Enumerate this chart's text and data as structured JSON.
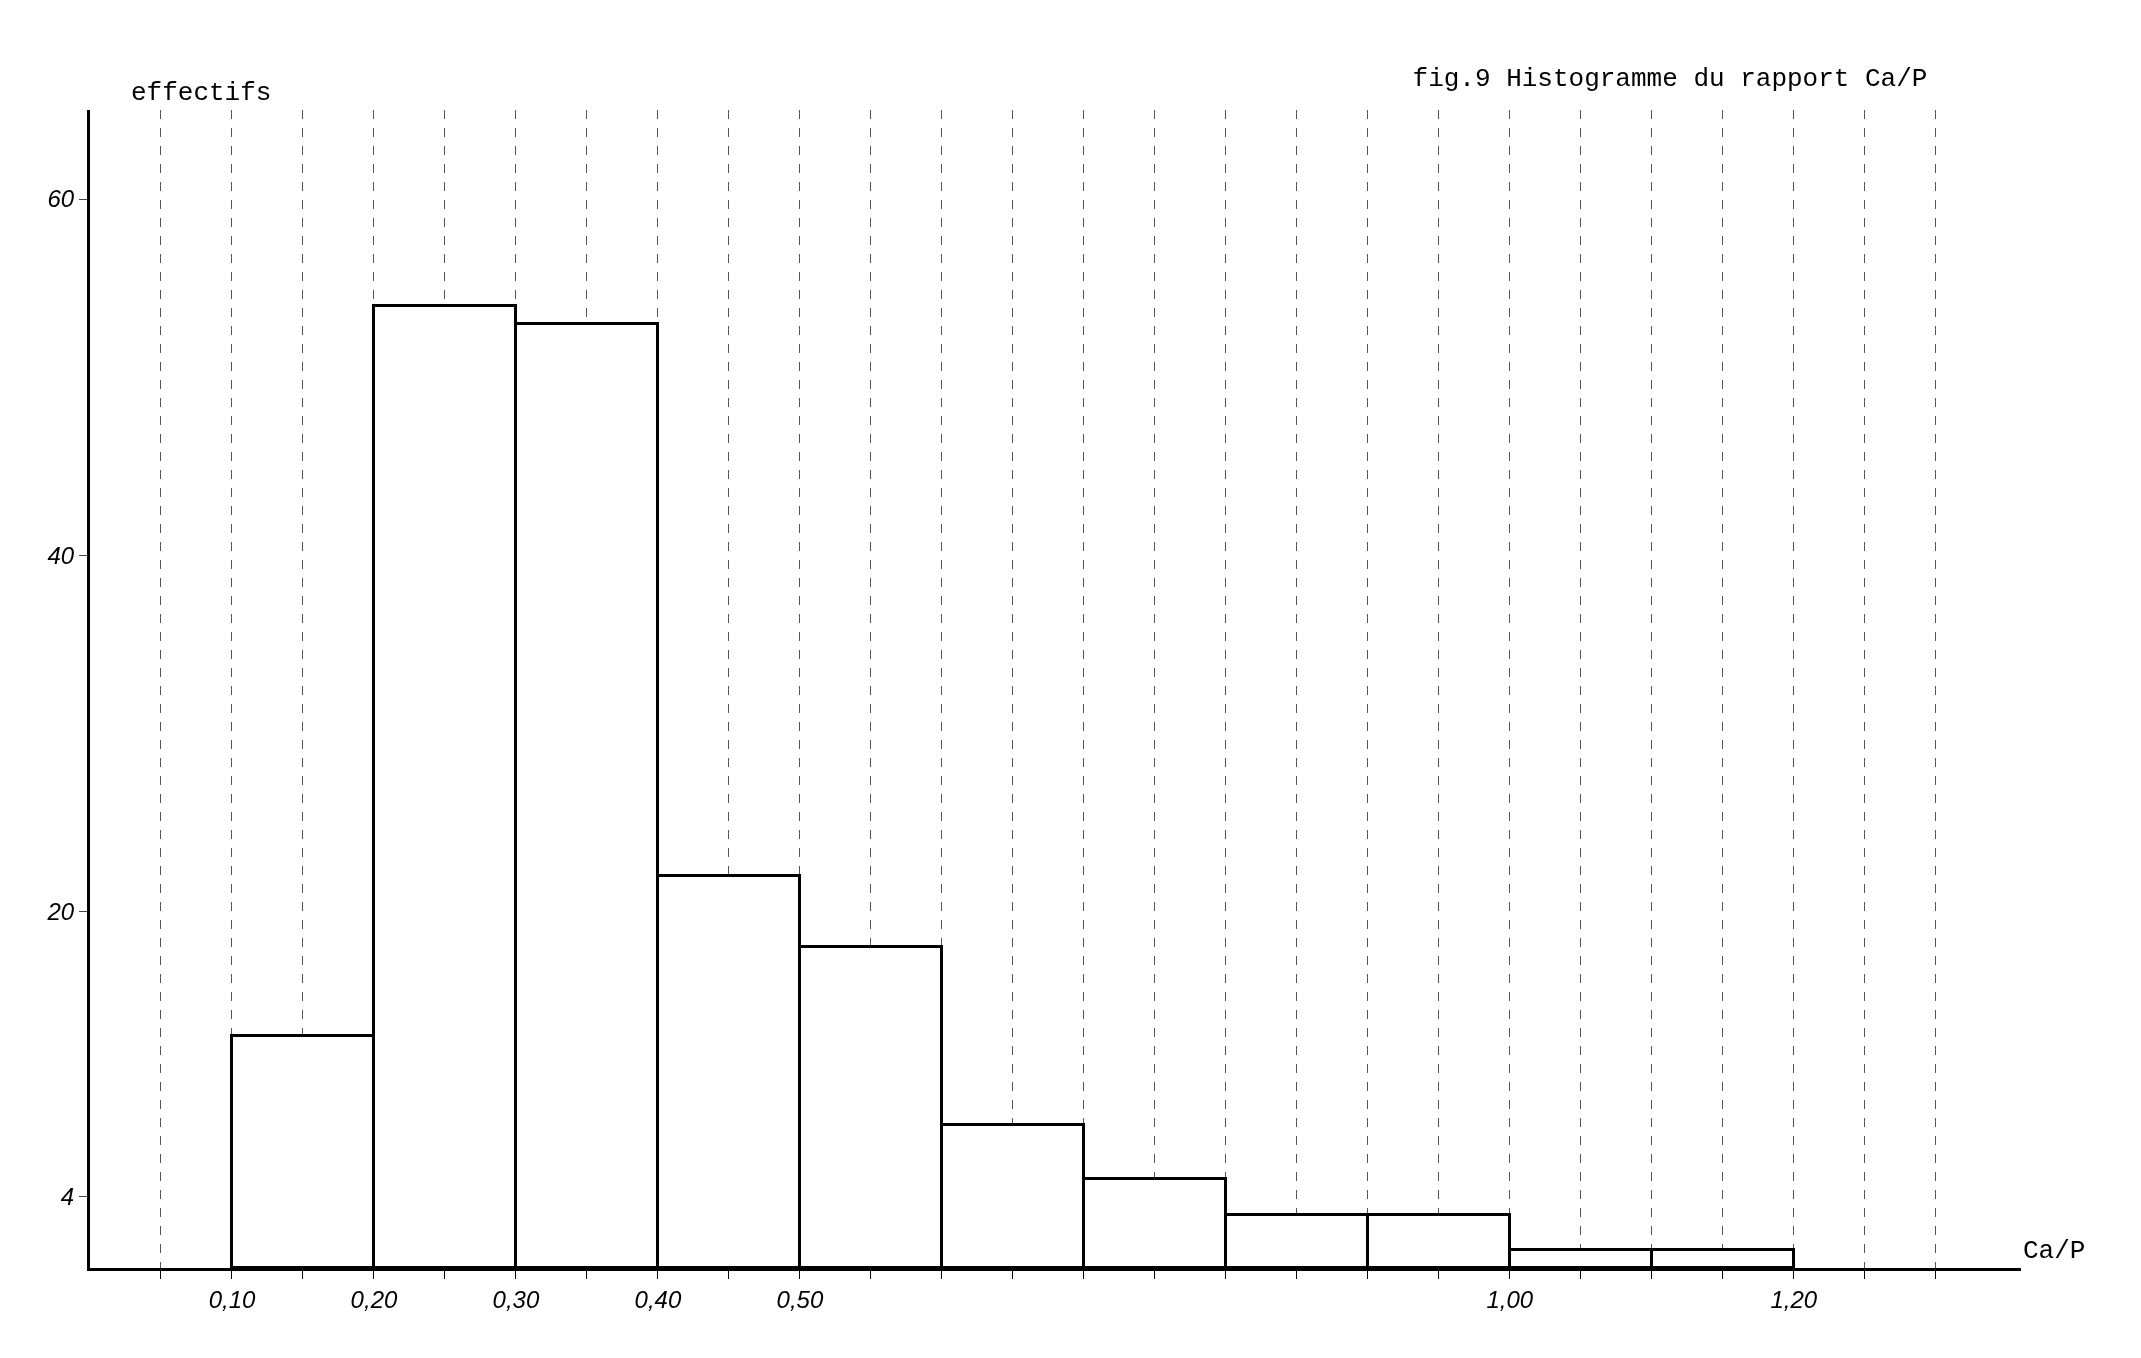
{
  "chart_data": {
    "type": "histogram",
    "title": "fig.9 Histogramme du rapport Ca/P",
    "xlabel": "Ca/P",
    "ylabel": "effectifs",
    "bins": [
      0.1,
      0.2,
      0.3,
      0.4,
      0.5,
      0.6,
      0.7,
      0.8,
      0.9,
      1.0,
      1.1,
      1.2
    ],
    "values": [
      13,
      54,
      53,
      22,
      18,
      8,
      5,
      3,
      3,
      1,
      1
    ],
    "color": "#ffffff",
    "xlim": [
      0,
      1.36
    ],
    "ylim": [
      0,
      65
    ],
    "xticks": [
      {
        "value": 0.05,
        "label": null
      },
      {
        "value": 0.1,
        "label": "0,10"
      },
      {
        "value": 0.15,
        "label": null
      },
      {
        "value": 0.2,
        "label": "0,20"
      },
      {
        "value": 0.25,
        "label": null
      },
      {
        "value": 0.3,
        "label": "0,30"
      },
      {
        "value": 0.35,
        "label": null
      },
      {
        "value": 0.4,
        "label": "0,40"
      },
      {
        "value": 0.45,
        "label": null
      },
      {
        "value": 0.5,
        "label": "0,50"
      },
      {
        "value": 0.55,
        "label": null
      },
      {
        "value": 0.6,
        "label": null
      },
      {
        "value": 0.65,
        "label": null
      },
      {
        "value": 0.7,
        "label": null
      },
      {
        "value": 0.75,
        "label": null
      },
      {
        "value": 0.8,
        "label": null
      },
      {
        "value": 0.85,
        "label": null
      },
      {
        "value": 0.9,
        "label": null
      },
      {
        "value": 0.95,
        "label": null
      },
      {
        "value": 1.0,
        "label": "1,00"
      },
      {
        "value": 1.05,
        "label": null
      },
      {
        "value": 1.1,
        "label": null
      },
      {
        "value": 1.15,
        "label": null
      },
      {
        "value": 1.2,
        "label": "1,20"
      },
      {
        "value": 1.25,
        "label": null
      },
      {
        "value": 1.3,
        "label": null
      }
    ],
    "yticks": [
      4,
      20,
      40,
      60
    ],
    "grid": "x"
  }
}
